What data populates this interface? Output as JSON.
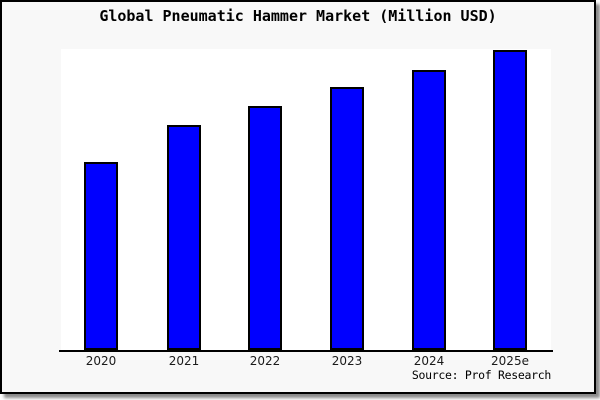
{
  "figure": {
    "title": "Global Pneumatic Hammer Market (Million USD)",
    "source": "Source: Prof Research",
    "colors": {
      "bar_fill": "#0000ff",
      "bar_border": "#000000",
      "plot_background": "#ffffff",
      "figure_background": "#f8f8f8",
      "frame_border": "#000000",
      "axis": "#000000",
      "title_text": "#000000",
      "tick_label_text": "#1a1a1a"
    }
  },
  "chart_data": {
    "type": "bar",
    "title": "Global Pneumatic Hammer Market (Million USD)",
    "categories": [
      "2020",
      "2021",
      "2022",
      "2023",
      "2024",
      "2025e"
    ],
    "values": [
      62.5,
      74.8,
      81.1,
      87.4,
      93.0,
      99.7
    ],
    "value_note": "y-axis has no tick labels; values are relative bar heights in percent of plot height (tallest bar 2025e nearly reaches plot top)",
    "xlabel": "",
    "ylabel": "",
    "ylim": [
      0,
      100
    ],
    "grid": false,
    "legend": "none",
    "bar_color": "#0000ff",
    "annotation": "Source: Prof Research"
  }
}
